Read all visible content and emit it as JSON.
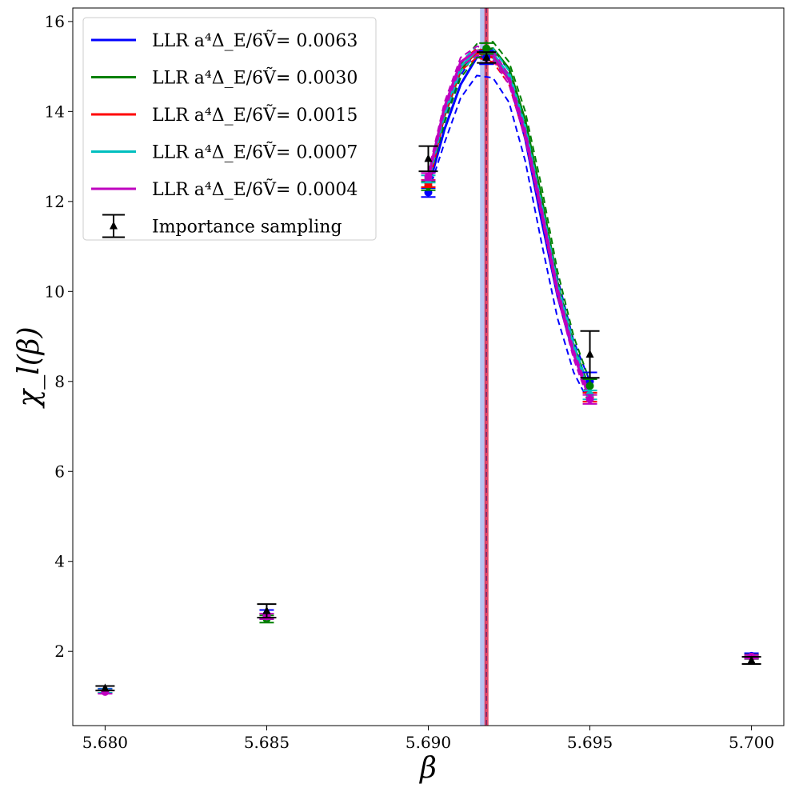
{
  "chart_data": {
    "type": "line",
    "xlabel": "β",
    "ylabel": "χ_l(β)",
    "xlim": [
      5.679,
      5.701
    ],
    "ylim": [
      0.35,
      16.3
    ],
    "x_ticks": [
      "5.680",
      "5.685",
      "5.690",
      "5.695",
      "5.700"
    ],
    "x_tick_values": [
      5.68,
      5.685,
      5.69,
      5.695,
      5.7
    ],
    "y_ticks": [
      "2",
      "4",
      "6",
      "8",
      "10",
      "12",
      "14",
      "16"
    ],
    "y_tick_values": [
      2,
      4,
      6,
      8,
      10,
      12,
      14,
      16
    ],
    "grid": false,
    "legend_position": "top-left",
    "vertical_bands": [
      {
        "x": 5.6917,
        "color": "#aab8f0"
      },
      {
        "x": 5.6918,
        "color": "#e0355a"
      }
    ],
    "series": [
      {
        "name": "LLR a⁴Δ_E/6Ṽ= 0.0063",
        "color": "#0000ff",
        "curve_x": [
          5.69,
          5.6905,
          5.691,
          5.6915,
          5.692,
          5.6925,
          5.693,
          5.6935,
          5.694,
          5.6945,
          5.695
        ],
        "curve_y": [
          12.3,
          13.6,
          14.6,
          15.2,
          15.25,
          14.7,
          13.4,
          11.6,
          9.9,
          8.6,
          7.7
        ],
        "band_upper": [
          12.4,
          13.8,
          14.8,
          15.35,
          15.4,
          14.9,
          13.7,
          12.0,
          10.3,
          8.9,
          8.0
        ],
        "band_lower": [
          12.2,
          13.3,
          14.3,
          14.8,
          14.75,
          14.2,
          12.9,
          11.1,
          9.4,
          8.2,
          7.5
        ],
        "points_x": [
          5.68,
          5.685,
          5.69,
          5.6918,
          5.695,
          5.7
        ],
        "points_y": [
          1.12,
          2.82,
          12.2,
          15.2,
          8.0,
          1.9
        ],
        "points_err": [
          0.05,
          0.1,
          0.1,
          0.15,
          0.2,
          0.06
        ]
      },
      {
        "name": "LLR a⁴Δ_E/6Ṽ= 0.0030",
        "color": "#008000",
        "curve_x": [
          5.69,
          5.6905,
          5.691,
          5.6915,
          5.692,
          5.6925,
          5.693,
          5.6935,
          5.694,
          5.6945,
          5.695
        ],
        "curve_y": [
          12.5,
          13.9,
          14.9,
          15.35,
          15.4,
          14.95,
          13.8,
          12.1,
          10.2,
          8.8,
          7.8
        ],
        "band_upper": [
          12.6,
          14.05,
          15.05,
          15.5,
          15.55,
          15.1,
          14.0,
          12.35,
          10.45,
          9.0,
          8.0
        ],
        "band_lower": [
          12.4,
          13.75,
          14.75,
          15.2,
          15.25,
          14.8,
          13.6,
          11.85,
          9.95,
          8.6,
          7.6
        ],
        "points_x": [
          5.68,
          5.685,
          5.69,
          5.6918,
          5.695,
          5.7
        ],
        "points_y": [
          1.12,
          2.72,
          12.35,
          15.4,
          7.9,
          1.88
        ],
        "points_err": [
          0.04,
          0.08,
          0.1,
          0.12,
          0.15,
          0.05
        ]
      },
      {
        "name": "LLR a⁴Δ_E/6Ṽ= 0.0015",
        "color": "#ff0000",
        "curve_x": [
          5.69,
          5.6905,
          5.691,
          5.6915,
          5.692,
          5.6925,
          5.693,
          5.6935,
          5.694,
          5.6945,
          5.695
        ],
        "curve_y": [
          12.4,
          14.0,
          15.0,
          15.3,
          15.2,
          14.7,
          13.5,
          11.8,
          10.0,
          8.7,
          7.65
        ],
        "band_upper": [
          12.5,
          14.1,
          15.1,
          15.4,
          15.3,
          14.8,
          13.6,
          11.9,
          10.1,
          8.8,
          7.75
        ],
        "band_lower": [
          12.3,
          13.9,
          14.9,
          15.2,
          15.1,
          14.6,
          13.4,
          11.7,
          9.9,
          8.6,
          7.55
        ],
        "points_x": [
          5.68,
          5.685,
          5.69,
          5.695,
          5.7
        ],
        "points_y": [
          1.12,
          2.78,
          12.4,
          7.65,
          1.88
        ],
        "points_err": [
          0.04,
          0.06,
          0.08,
          0.1,
          0.04
        ]
      },
      {
        "name": "LLR a⁴Δ_E/6Ṽ= 0.0007",
        "color": "#00bfbf",
        "curve_x": [
          5.69,
          5.6905,
          5.691,
          5.6915,
          5.692,
          5.6925,
          5.693,
          5.6935,
          5.694,
          5.6945,
          5.695
        ],
        "curve_y": [
          12.5,
          14.0,
          15.0,
          15.35,
          15.3,
          14.8,
          13.6,
          11.9,
          10.1,
          8.75,
          7.7
        ],
        "band_upper": [
          12.6,
          14.1,
          15.1,
          15.45,
          15.4,
          14.9,
          13.7,
          12.0,
          10.2,
          8.85,
          7.8
        ],
        "band_lower": [
          12.4,
          13.9,
          14.9,
          15.25,
          15.2,
          14.7,
          13.5,
          11.8,
          10.0,
          8.65,
          7.6
        ],
        "points_x": [
          5.68,
          5.685,
          5.69,
          5.695,
          5.7
        ],
        "points_y": [
          1.12,
          2.78,
          12.5,
          7.7,
          1.88
        ],
        "points_err": [
          0.04,
          0.06,
          0.08,
          0.1,
          0.04
        ]
      },
      {
        "name": "LLR a⁴Δ_E/6Ṽ= 0.0004",
        "color": "#bf00bf",
        "curve_x": [
          5.69,
          5.6905,
          5.691,
          5.6915,
          5.692,
          5.6925,
          5.693,
          5.6935,
          5.694,
          5.6945,
          5.695
        ],
        "curve_y": [
          12.55,
          14.1,
          15.1,
          15.35,
          15.25,
          14.7,
          13.5,
          11.8,
          10.0,
          8.6,
          7.6
        ],
        "band_upper": [
          12.65,
          14.2,
          15.2,
          15.45,
          15.35,
          14.8,
          13.6,
          11.9,
          10.1,
          8.7,
          7.7
        ],
        "band_lower": [
          12.45,
          14.0,
          15.0,
          15.25,
          15.15,
          14.6,
          13.4,
          11.7,
          9.9,
          8.5,
          7.5
        ],
        "points_x": [
          5.68,
          5.685,
          5.69,
          5.695,
          5.7
        ],
        "points_y": [
          1.1,
          2.78,
          12.55,
          7.6,
          1.88
        ],
        "points_err": [
          0.04,
          0.06,
          0.08,
          0.1,
          0.04
        ]
      },
      {
        "name": "Importance sampling",
        "color": "#000000",
        "marker": "triangle",
        "points_x": [
          5.68,
          5.685,
          5.69,
          5.6918,
          5.695,
          5.7
        ],
        "points_y": [
          1.18,
          2.9,
          12.95,
          15.2,
          8.6,
          1.8
        ],
        "points_err": [
          0.05,
          0.15,
          0.28,
          0.12,
          0.52,
          0.08
        ]
      }
    ]
  }
}
